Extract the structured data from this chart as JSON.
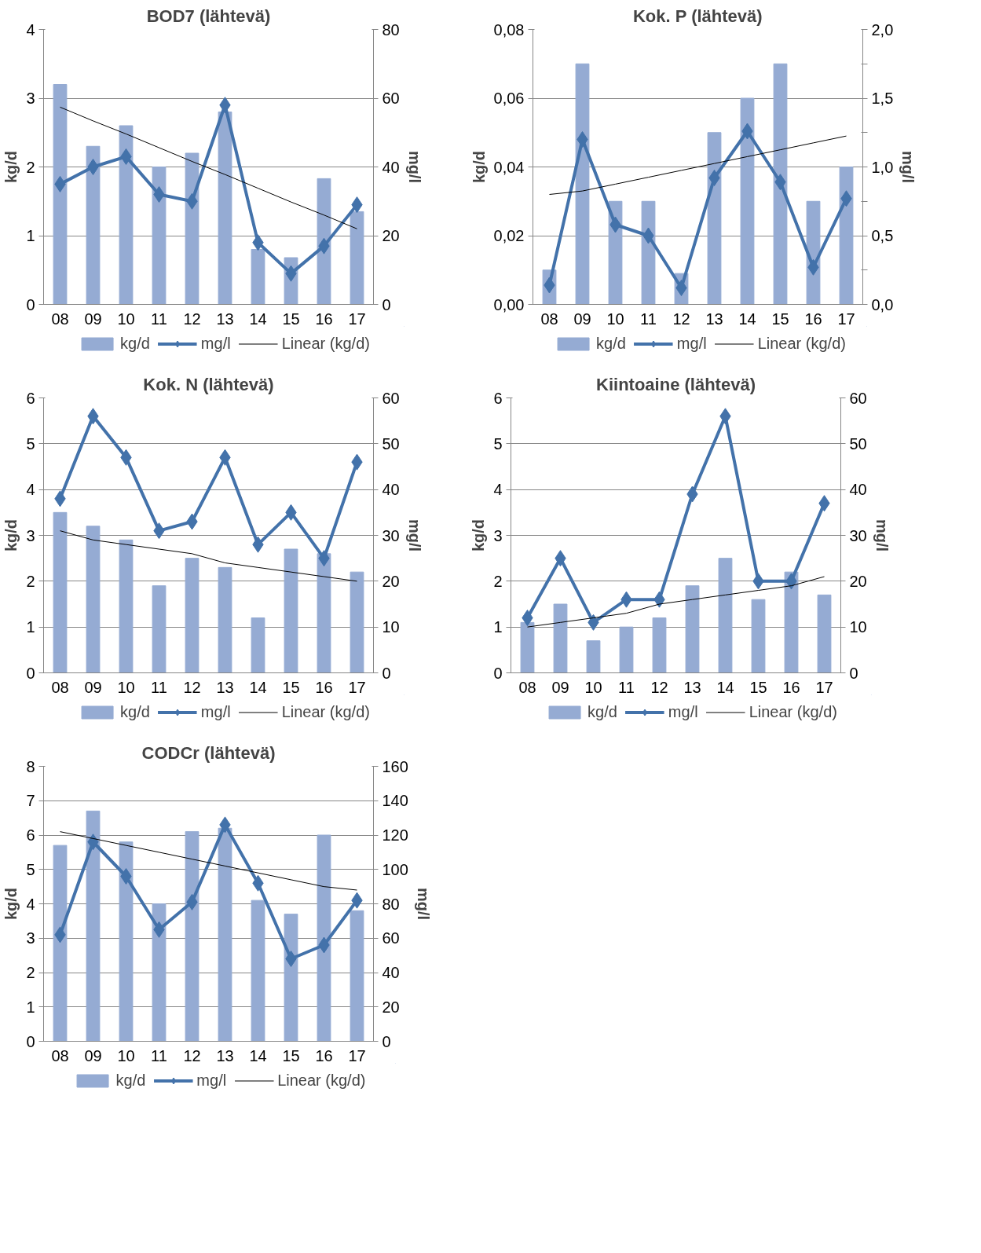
{
  "chart_data": [
    {
      "type": "bar",
      "title": "BOD7 (lähtevä)",
      "ylabel": "kg/d",
      "y2label": "mg/l",
      "categories": [
        "08",
        "09",
        "10",
        "11",
        "12",
        "13",
        "14",
        "15",
        "16",
        "17"
      ],
      "ylim": [
        0,
        4
      ],
      "yticks": [
        0,
        1,
        2,
        3,
        4
      ],
      "y2lim": [
        0,
        80
      ],
      "y2ticks": [
        0,
        20,
        40,
        60,
        80
      ],
      "grid": "y",
      "legend": "bottom",
      "series": [
        {
          "name": "kg/d",
          "color": "#95abd3",
          "values": [
            3.2,
            2.3,
            2.6,
            2.0,
            2.2,
            2.8,
            0.8,
            0.68,
            1.83,
            1.35
          ]
        },
        {
          "name": "mg/l",
          "type": "line",
          "axis": "y2",
          "marker": "diamond",
          "color": "#4372aa",
          "values": [
            35,
            40,
            43,
            32,
            30,
            58,
            18,
            9,
            17,
            29
          ]
        },
        {
          "name": "Linear (kg/d)",
          "type": "line",
          "color": "#000000",
          "values": [
            2.87,
            2.67,
            2.48,
            2.28,
            2.08,
            1.89,
            1.69,
            1.49,
            1.3,
            1.1
          ]
        }
      ]
    },
    {
      "type": "bar",
      "title": "Kok. P (lähtevä)",
      "ylabel": "kg/d",
      "y2label": "mg/l",
      "categories": [
        "08",
        "09",
        "10",
        "11",
        "12",
        "13",
        "14",
        "15",
        "16",
        "17"
      ],
      "ylim": [
        0,
        0.08
      ],
      "yticks": [
        {
          "value": 0,
          "label": "0,00"
        },
        {
          "value": 0.02,
          "label": "0,02"
        },
        {
          "value": 0.04,
          "label": "0,04"
        },
        {
          "value": 0.06,
          "label": "0,06"
        },
        {
          "value": 0.08,
          "label": "0,08"
        }
      ],
      "y2lim": [
        0,
        2
      ],
      "y2ticks": [
        {
          "value": 0,
          "label": "0,0"
        },
        {
          "value": 0.25,
          "label": null
        },
        {
          "value": 0.5,
          "label": "0,5"
        },
        {
          "value": 0.75,
          "label": null
        },
        {
          "value": 1,
          "label": "1,0"
        },
        {
          "value": 1.25,
          "label": null
        },
        {
          "value": 1.5,
          "label": "1,5"
        },
        {
          "value": 1.75,
          "label": null
        },
        {
          "value": 2,
          "label": "2,0"
        }
      ],
      "grid": "y",
      "legend": "bottom",
      "series": [
        {
          "name": "kg/d",
          "color": "#95abd3",
          "values": [
            0.01,
            0.07,
            0.03,
            0.03,
            0.009,
            0.05,
            0.06,
            0.07,
            0.03,
            0.04
          ]
        },
        {
          "name": "mg/l",
          "type": "line",
          "axis": "y2",
          "marker": "diamond",
          "color": "#4372aa",
          "values": [
            0.14,
            1.2,
            0.58,
            0.5,
            0.12,
            0.92,
            1.26,
            0.89,
            0.27,
            0.77
          ]
        },
        {
          "name": "Linear (kg/d)",
          "type": "line",
          "color": "#000000",
          "values": [
            0.032,
            0.033,
            0.035,
            0.037,
            0.039,
            0.041,
            0.043,
            0.045,
            0.047,
            0.049
          ]
        }
      ]
    },
    {
      "type": "bar",
      "title": "Kok. N (lähtevä)",
      "ylabel": "kg/d",
      "y2label": "mg/l",
      "categories": [
        "08",
        "09",
        "10",
        "11",
        "12",
        "13",
        "14",
        "15",
        "16",
        "17"
      ],
      "ylim": [
        0,
        6
      ],
      "yticks": [
        0,
        1,
        2,
        3,
        4,
        5,
        6
      ],
      "y2lim": [
        0,
        60
      ],
      "y2ticks": [
        0,
        10,
        20,
        30,
        40,
        50,
        60
      ],
      "grid": "y",
      "legend": "bottom",
      "series": [
        {
          "name": "kg/d",
          "color": "#95abd3",
          "values": [
            3.5,
            3.2,
            2.9,
            1.9,
            2.5,
            2.3,
            1.2,
            2.7,
            2.6,
            2.2
          ]
        },
        {
          "name": "mg/l",
          "type": "line",
          "axis": "y2",
          "marker": "diamond",
          "color": "#4372aa",
          "values": [
            38,
            56,
            47,
            31,
            33,
            47,
            28,
            35,
            25,
            46
          ]
        },
        {
          "name": "Linear (kg/d)",
          "type": "line",
          "color": "#000000",
          "values": [
            3.1,
            2.9,
            2.8,
            2.7,
            2.6,
            2.4,
            2.3,
            2.2,
            2.1,
            2.0
          ]
        }
      ]
    },
    {
      "type": "bar",
      "title": "Kiintoaine (lähtevä)",
      "ylabel": "kg/d",
      "y2label": "mg/l",
      "categories": [
        "08",
        "09",
        "10",
        "11",
        "12",
        "13",
        "14",
        "15",
        "16",
        "17"
      ],
      "ylim": [
        0,
        6
      ],
      "yticks": [
        0,
        1,
        2,
        3,
        4,
        5,
        6
      ],
      "y2lim": [
        0,
        60
      ],
      "y2ticks": [
        0,
        10,
        20,
        30,
        40,
        50,
        60
      ],
      "grid": "y",
      "legend": "bottom",
      "series": [
        {
          "name": "kg/d",
          "color": "#95abd3",
          "values": [
            1.1,
            1.5,
            0.7,
            1.0,
            1.2,
            1.9,
            2.5,
            1.6,
            2.2,
            1.7
          ]
        },
        {
          "name": "mg/l",
          "type": "line",
          "axis": "y2",
          "marker": "diamond",
          "color": "#4372aa",
          "values": [
            12,
            25,
            11,
            16,
            16,
            39,
            56,
            20,
            20,
            37
          ]
        },
        {
          "name": "Linear (kg/d)",
          "type": "line",
          "color": "#000000",
          "values": [
            1.0,
            1.1,
            1.2,
            1.3,
            1.5,
            1.6,
            1.7,
            1.8,
            1.9,
            2.1
          ]
        }
      ]
    },
    {
      "type": "bar",
      "title": "CODCr (lähtevä)",
      "ylabel": "kg/d",
      "y2label": "mg/l",
      "categories": [
        "08",
        "09",
        "10",
        "11",
        "12",
        "13",
        "14",
        "15",
        "16",
        "17"
      ],
      "ylim": [
        0,
        8
      ],
      "yticks": [
        0,
        1,
        2,
        3,
        4,
        5,
        6,
        7,
        8
      ],
      "y2lim": [
        0,
        160
      ],
      "y2ticks": [
        0,
        20,
        40,
        60,
        80,
        100,
        120,
        140,
        160
      ],
      "grid": "y",
      "legend": "bottom",
      "series": [
        {
          "name": "kg/d",
          "color": "#95abd3",
          "values": [
            5.7,
            6.7,
            5.8,
            4.0,
            6.1,
            6.2,
            4.1,
            3.7,
            6.0,
            3.8
          ]
        },
        {
          "name": "mg/l",
          "type": "line",
          "axis": "y2",
          "marker": "diamond",
          "color": "#4372aa",
          "values": [
            62,
            116,
            96,
            65,
            81,
            126,
            92,
            48,
            56,
            82
          ]
        },
        {
          "name": "Linear (kg/d)",
          "type": "line",
          "color": "#000000",
          "values": [
            6.1,
            5.9,
            5.7,
            5.5,
            5.3,
            5.1,
            4.9,
            4.7,
            4.5,
            4.4
          ]
        }
      ]
    }
  ]
}
